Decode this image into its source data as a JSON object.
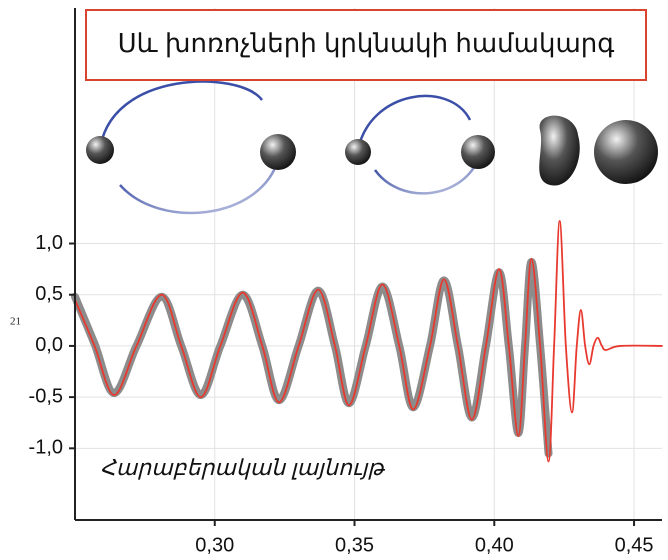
{
  "chart_data": {
    "type": "line",
    "title": "Սև խոռոչների կրկնակի համակարգ",
    "ylabel": "Հարաբերական լայնույթ",
    "annotation": "21",
    "x": [
      0.25,
      0.257,
      0.264,
      0.272,
      0.281,
      0.288,
      0.295,
      0.302,
      0.31,
      0.317,
      0.323,
      0.33,
      0.337,
      0.343,
      0.348,
      0.354,
      0.36,
      0.366,
      0.371,
      0.377,
      0.382,
      0.387,
      0.392,
      0.397,
      0.4017,
      0.4052,
      0.4086,
      0.411,
      0.4133,
      0.4164,
      0.4194,
      0.4214,
      0.4234,
      0.4256,
      0.4278,
      0.4295,
      0.431,
      0.4325,
      0.434,
      0.4355,
      0.437,
      0.4385,
      0.44,
      0.445,
      0.46
    ],
    "series": [
      {
        "color": "#8c8c8c",
        "values": [
          0.48,
          0.02,
          -0.46,
          0.0,
          0.48,
          0.0,
          -0.48,
          0.0,
          0.5,
          0.0,
          -0.53,
          0.0,
          0.54,
          0.0,
          -0.56,
          0.0,
          0.58,
          0.0,
          -0.6,
          0.0,
          0.64,
          0.0,
          -0.7,
          0.0,
          0.72,
          0.0,
          -0.85,
          0.0,
          0.82,
          0.0,
          -1.05,
          null,
          null,
          null,
          null,
          null,
          null,
          null,
          null,
          null,
          null,
          null,
          null,
          null,
          null
        ]
      },
      {
        "color": "#e8392f",
        "values": [
          0.45,
          0.0,
          -0.48,
          0.0,
          0.5,
          0.0,
          -0.5,
          0.0,
          0.52,
          0.0,
          -0.55,
          0.0,
          0.55,
          0.0,
          -0.58,
          0.0,
          0.6,
          0.0,
          -0.62,
          0.0,
          0.65,
          0.0,
          -0.72,
          0.0,
          0.75,
          0.0,
          -0.88,
          0.0,
          0.85,
          0.0,
          -1.13,
          0.0,
          1.22,
          0.0,
          -0.65,
          0.0,
          0.35,
          0.0,
          -0.18,
          0.0,
          0.08,
          0.0,
          -0.04,
          0.0,
          0.0
        ]
      }
    ],
    "xlim": [
      0.25,
      0.46
    ],
    "ylim": [
      -1.7,
      3.3
    ],
    "xticks": [
      {
        "value": 0.3,
        "label": "0,30"
      },
      {
        "value": 0.35,
        "label": "0,35"
      },
      {
        "value": 0.4,
        "label": "0,40"
      },
      {
        "value": 0.45,
        "label": "0,45"
      }
    ],
    "yticks": [
      {
        "value": 1.0,
        "label": "1,0"
      },
      {
        "value": 0.5,
        "label": "0,5"
      },
      {
        "value": 0.0,
        "label": "0,0"
      },
      {
        "value": -0.5,
        "label": "-0,5"
      },
      {
        "value": -1.0,
        "label": "-1,0"
      }
    ],
    "grid": true
  }
}
